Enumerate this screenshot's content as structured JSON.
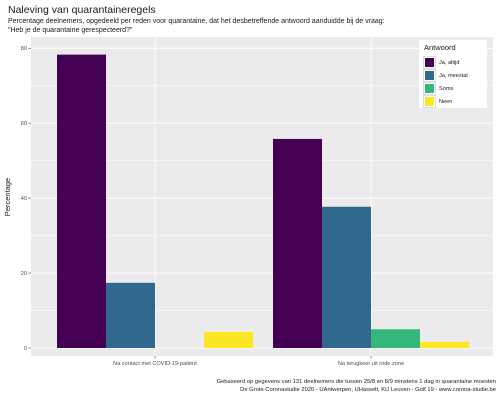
{
  "title": "Naleving van quarantaineregels",
  "subtitle": "Percentage deelnemers, opgedeeld per reden voor quarantaine, dat het desbetreffende antwoord aanduidde bij de vraag:\n\"Heb je de quarantaine gerespecteerd?\"",
  "caption": "Gebaseerd op gegevens van 131 deelnemers die tussen 25/8 en 8/9 minstens 1 dag in quarantaine moesten\nDe Grote Coronastudie 2020 - UAntwerpen, UHasselt, KU Leuven - Golf 19 - www.corona-studie.be",
  "chart_data": {
    "type": "bar",
    "categories": [
      "Na contact met COVID-19-patiënt",
      "Na terugkeer uit rode zone"
    ],
    "series": [
      {
        "name": "Ja, altijd",
        "color": "#440154",
        "values": [
          78.3,
          55.8
        ]
      },
      {
        "name": "Ja, meestal",
        "color": "#31688e",
        "values": [
          17.4,
          37.7
        ]
      },
      {
        "name": "Soms",
        "color": "#35b779",
        "values": [
          0,
          5.0
        ]
      },
      {
        "name": "Neen",
        "color": "#fde725",
        "values": [
          4.3,
          1.6
        ]
      }
    ],
    "ylabel": "Percentage",
    "xlabel": "",
    "ylim": [
      0,
      83
    ],
    "yticks": [
      0,
      20,
      40,
      60,
      80
    ],
    "legend_title": "Antwoord",
    "legend_position": "top-right",
    "grid": true,
    "panel_background": "#ebebeb"
  }
}
